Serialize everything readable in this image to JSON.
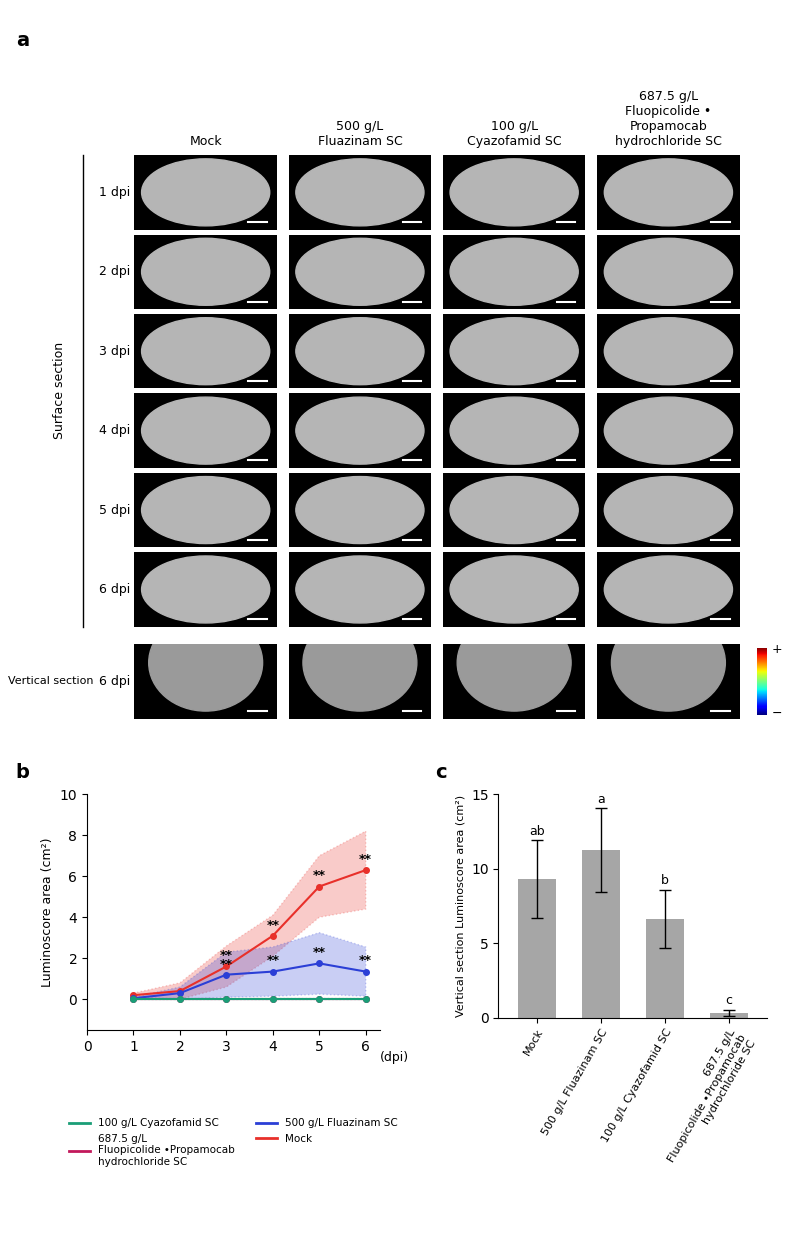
{
  "panel_a": {
    "label": "a",
    "columns": [
      "Mock",
      "500 g/L\nFluazinam SC",
      "100 g/L\nCyazofamid SC",
      "687.5 g/L\nFluopicolide •\nPropamocab\nhydrochloride SC"
    ],
    "surface_rows": [
      "1 dpi",
      "2 dpi",
      "3 dpi",
      "4 dpi",
      "5 dpi",
      "6 dpi"
    ],
    "vertical_row": "6 dpi",
    "surface_group": "Surface section",
    "vertical_group": "Vertical section",
    "colorbar": {
      "max_label": "+",
      "min_label": "−"
    }
  },
  "chart_data": [
    {
      "panel": "b",
      "type": "line",
      "x": [
        1,
        2,
        3,
        4,
        5,
        6
      ],
      "xlim": [
        0,
        6.3
      ],
      "xticks": [
        0,
        1,
        2,
        3,
        4,
        5,
        6
      ],
      "ylim": [
        -1.5,
        10
      ],
      "yticks": [
        0,
        2,
        4,
        6,
        8,
        10
      ],
      "xlabel": "(dpi)",
      "ylabel": "Luminoscore area (cm²)",
      "legend": "lower center",
      "series": [
        {
          "name": "100 g/L Cyazofamid SC",
          "color": "#1a9e77",
          "values": [
            0.02,
            0.02,
            0.02,
            0.02,
            0.02,
            0.02
          ],
          "error": [
            0.02,
            0.02,
            0.02,
            0.02,
            0.02,
            0.02
          ],
          "annotations": [
            null,
            null,
            null,
            null,
            null,
            null
          ]
        },
        {
          "name": "687.5 g/L\nFluopicolide •Propamocab\nhydrochloride SC",
          "color": "#c2185b",
          "values": [
            0,
            0,
            0,
            0,
            0,
            0
          ],
          "error": [
            0,
            0,
            0,
            0,
            0,
            0
          ],
          "annotations": [
            null,
            null,
            null,
            null,
            null,
            null
          ]
        },
        {
          "name": "500 g/L Fluazinam SC",
          "color": "#2b3fd6",
          "values": [
            0.05,
            0.3,
            1.2,
            1.35,
            1.75,
            1.35
          ],
          "error": [
            0.05,
            0.3,
            1.1,
            1.2,
            1.5,
            1.2
          ],
          "annotations": [
            null,
            null,
            "**",
            "**",
            "**",
            "**"
          ]
        },
        {
          "name": "Mock",
          "color": "#e8302a",
          "values": [
            0.2,
            0.4,
            1.6,
            3.1,
            5.5,
            6.3
          ],
          "error": [
            0.1,
            0.4,
            1.0,
            1.0,
            1.5,
            1.9
          ],
          "annotations": [
            null,
            null,
            "**",
            "**",
            "**",
            "**"
          ]
        }
      ]
    },
    {
      "panel": "c",
      "type": "bar",
      "categories": [
        "Mock",
        "500 g/L Fluazinam SC",
        "100 g/L Cyazofamid SC",
        "687.5 g/L\nFluopicolide •Propamocab\nhydrochloride SC"
      ],
      "values": [
        9.3,
        11.25,
        6.65,
        0.3
      ],
      "error": [
        2.6,
        2.8,
        1.95,
        0.2
      ],
      "letters": [
        "ab",
        "a",
        "b",
        "c"
      ],
      "color": "#a6a6a6",
      "ylim": [
        0,
        15
      ],
      "yticks": [
        0,
        5,
        10,
        15
      ],
      "ylabel": "Vertical section Luminoscore area (cm²)"
    }
  ]
}
